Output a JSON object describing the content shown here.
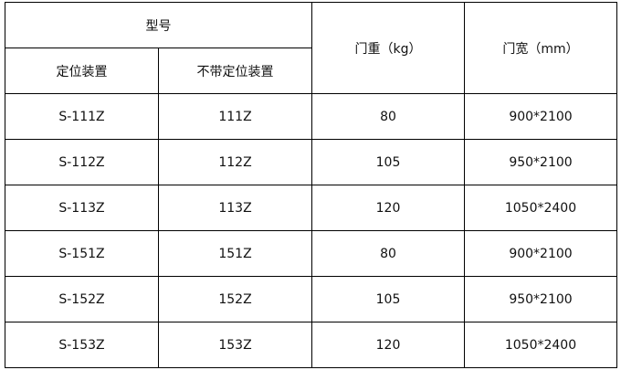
{
  "header": {
    "model": "型号",
    "with_positioning": "定位装置",
    "without_positioning": "不带定位装置",
    "door_weight": "门重（kg）",
    "door_width": "门宽（mm）"
  },
  "rows": [
    {
      "with": "S-111Z",
      "without": "111Z",
      "weight": "80",
      "size": "900*2100"
    },
    {
      "with": "S-112Z",
      "without": "112Z",
      "weight": "105",
      "size": "950*2100"
    },
    {
      "with": "S-113Z",
      "without": "113Z",
      "weight": "120",
      "size": "1050*2400"
    },
    {
      "with": "S-151Z",
      "without": "151Z",
      "weight": "80",
      "size": "900*2100"
    },
    {
      "with": "S-152Z",
      "without": "152Z",
      "weight": "105",
      "size": "950*2100"
    },
    {
      "with": "S-153Z",
      "without": "153Z",
      "weight": "120",
      "size": "1050*2400"
    }
  ]
}
